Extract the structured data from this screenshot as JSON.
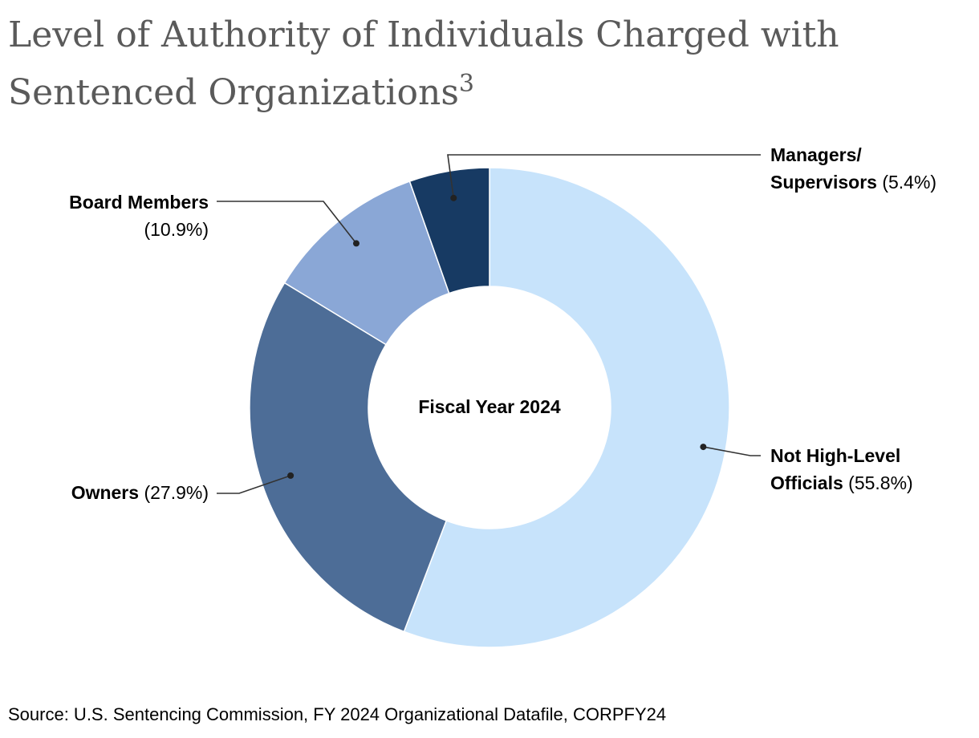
{
  "title": {
    "text": "Level of Authority of Individuals Charged with Sentenced Organizations",
    "footnote": "3"
  },
  "chart_data": {
    "type": "pie",
    "variant": "donut",
    "title": "Level of Authority of Individuals Charged with Sentenced Organizations",
    "center_label": "Fiscal Year 2024",
    "slices": [
      {
        "name": "Not High-Level Officials",
        "value": 55.8,
        "label": "(55.8%)",
        "color": "#c7e3fb"
      },
      {
        "name": "Owners",
        "value": 27.9,
        "label": "(27.9%)",
        "color": "#4d6d97"
      },
      {
        "name": "Board Members",
        "value": 10.9,
        "label": "(10.9%)",
        "color": "#8aa7d6"
      },
      {
        "name": "Managers/ Supervisors",
        "value": 5.4,
        "label": "(5.4%)",
        "color": "#173a63"
      }
    ],
    "labels": {
      "managers": {
        "line1": "Managers/",
        "line2_bold": "Supervisors",
        "pct": "(5.4%)"
      },
      "board": {
        "name": "Board Members",
        "pct": "(10.9%)"
      },
      "owners": {
        "name": "Owners",
        "pct": "(27.9%)"
      },
      "not_high": {
        "line1": "Not High-Level",
        "line2_bold": "Officials",
        "pct": "(55.8%)"
      }
    },
    "source": "Source: U.S. Sentencing Commission, FY 2024 Organizational Datafile, CORPFY24"
  }
}
